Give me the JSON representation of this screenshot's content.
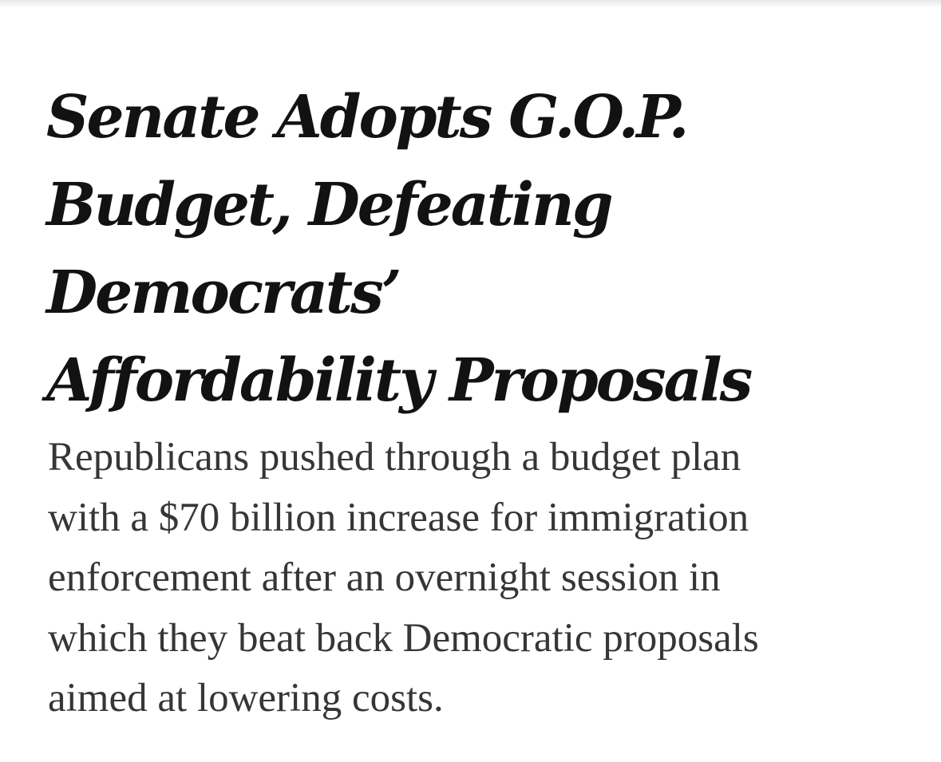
{
  "article": {
    "headline_lines": [
      "Senate Adopts G.O.P.",
      "Budget, Defeating",
      "Democrats’",
      "Affordability Proposals"
    ],
    "summary_lines": [
      "Republicans pushed through a budget plan",
      "with a $70 billion increase for immigration",
      "enforcement after an overnight session in",
      "which they beat back Democratic proposals",
      "aimed at lowering costs."
    ]
  }
}
